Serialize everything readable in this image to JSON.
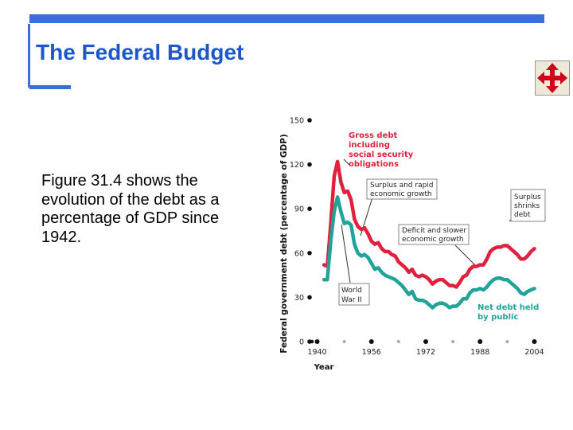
{
  "slide": {
    "title": "The Federal Budget",
    "body": "Figure 31.4 shows the evolution of the debt as a percentage of GDP since 1942."
  },
  "nav_button": {
    "icon": "move-arrows-icon",
    "color": "#d0021b"
  },
  "chart_data": {
    "type": "line",
    "title": "",
    "xlabel": "Year",
    "ylabel": "Federal government debt (percentage of GDP)",
    "xlim": [
      1938,
      2006
    ],
    "ylim": [
      0,
      150
    ],
    "x_ticks": [
      1940,
      1956,
      1972,
      1988,
      2004
    ],
    "y_ticks": [
      0,
      30,
      60,
      90,
      120,
      150
    ],
    "series": [
      {
        "name": "Gross debt including social security obligations",
        "color": "#e0203c",
        "x": [
          1942,
          1943,
          1944,
          1945,
          1946,
          1947,
          1948,
          1949,
          1950,
          1951,
          1952,
          1953,
          1954,
          1955,
          1956,
          1957,
          1958,
          1959,
          1960,
          1961,
          1962,
          1963,
          1964,
          1965,
          1966,
          1967,
          1968,
          1969,
          1970,
          1971,
          1972,
          1973,
          1974,
          1975,
          1976,
          1977,
          1978,
          1979,
          1980,
          1981,
          1982,
          1983,
          1984,
          1985,
          1986,
          1987,
          1988,
          1989,
          1990,
          1991,
          1992,
          1993,
          1994,
          1995,
          1996,
          1997,
          1998,
          1999,
          2000,
          2001,
          2002,
          2003,
          2004
        ],
        "y": [
          52,
          51,
          80,
          112,
          122,
          108,
          101,
          102,
          96,
          83,
          78,
          76,
          77,
          73,
          68,
          66,
          67,
          63,
          61,
          61,
          59,
          58,
          54,
          52,
          50,
          47,
          49,
          45,
          44,
          45,
          44,
          42,
          39,
          41,
          42,
          42,
          40,
          38,
          38,
          37,
          40,
          44,
          45,
          49,
          51,
          51,
          52,
          52,
          56,
          61,
          63,
          64,
          64,
          65,
          65,
          63,
          61,
          59,
          56,
          56,
          58,
          61,
          63
        ]
      },
      {
        "name": "Net debt held by public",
        "color": "#22a39a",
        "x": [
          1942,
          1943,
          1944,
          1945,
          1946,
          1947,
          1948,
          1949,
          1950,
          1951,
          1952,
          1953,
          1954,
          1955,
          1956,
          1957,
          1958,
          1959,
          1960,
          1961,
          1962,
          1963,
          1964,
          1965,
          1966,
          1967,
          1968,
          1969,
          1970,
          1971,
          1972,
          1973,
          1974,
          1975,
          1976,
          1977,
          1978,
          1979,
          1980,
          1981,
          1982,
          1983,
          1984,
          1985,
          1986,
          1987,
          1988,
          1989,
          1990,
          1991,
          1992,
          1993,
          1994,
          1995,
          1996,
          1997,
          1998,
          1999,
          2000,
          2001,
          2002,
          2003,
          2004
        ],
        "y": [
          42,
          42,
          68,
          88,
          98,
          88,
          80,
          81,
          79,
          66,
          60,
          58,
          59,
          57,
          53,
          49,
          50,
          47,
          45,
          44,
          43,
          42,
          40,
          38,
          35,
          32,
          34,
          29,
          28,
          28,
          27,
          25,
          23,
          25,
          26,
          26,
          25,
          23,
          24,
          24,
          26,
          29,
          29,
          33,
          35,
          35,
          36,
          35,
          37,
          40,
          42,
          43,
          43,
          42,
          42,
          40,
          38,
          36,
          33,
          32,
          34,
          35,
          36
        ]
      }
    ],
    "annotations": [
      "Gross debt including social security obligations",
      "Surplus and rapid economic growth",
      "Surplus shrinks debt",
      "Deficit and slower economic growth",
      "World War II",
      "Net debt held by public"
    ]
  }
}
